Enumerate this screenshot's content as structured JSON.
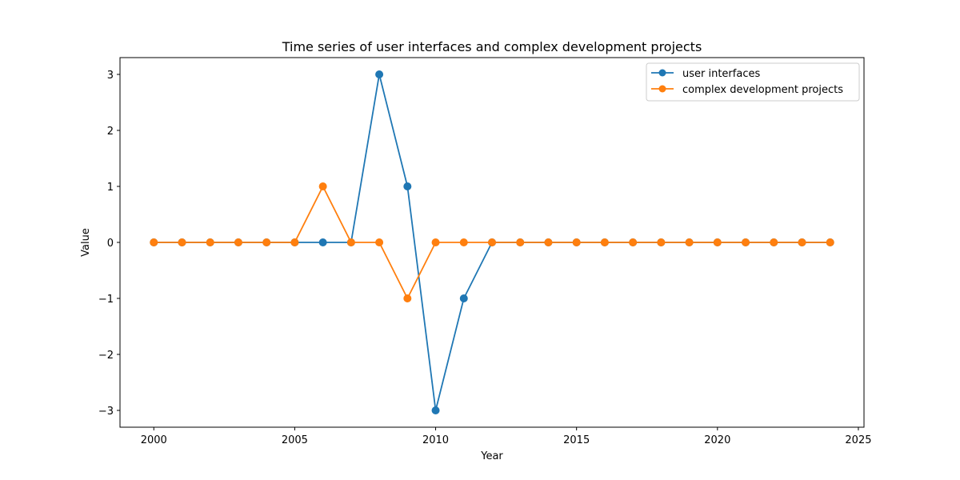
{
  "chart_data": {
    "type": "line",
    "title": "Time series of user interfaces and complex development projects",
    "xlabel": "Year",
    "ylabel": "Value",
    "x": [
      2000,
      2001,
      2002,
      2003,
      2004,
      2005,
      2006,
      2007,
      2008,
      2009,
      2010,
      2011,
      2012,
      2013,
      2014,
      2015,
      2016,
      2017,
      2018,
      2019,
      2020,
      2021,
      2022,
      2023,
      2024
    ],
    "series": [
      {
        "name": "user interfaces",
        "color": "#1f77b4",
        "values": [
          0,
          0,
          0,
          0,
          0,
          0,
          0,
          0,
          3,
          1,
          -3,
          -1,
          0,
          0,
          0,
          0,
          0,
          0,
          0,
          0,
          0,
          0,
          0,
          0,
          0
        ]
      },
      {
        "name": "complex development projects",
        "color": "#ff7f0e",
        "values": [
          0,
          0,
          0,
          0,
          0,
          0,
          1,
          0,
          0,
          -1,
          0,
          0,
          0,
          0,
          0,
          0,
          0,
          0,
          0,
          0,
          0,
          0,
          0,
          0,
          0
        ]
      }
    ],
    "xticks": [
      2000,
      2005,
      2010,
      2015,
      2020,
      2025
    ],
    "xtick_labels": [
      "2000",
      "2005",
      "2010",
      "2015",
      "2020",
      "2025"
    ],
    "yticks": [
      -3,
      -2,
      -1,
      0,
      1,
      2,
      3
    ],
    "ytick_labels": [
      "−3",
      "−2",
      "−1",
      "0",
      "1",
      "2",
      "3"
    ],
    "xlim": [
      1998.8,
      2025.2
    ],
    "ylim": [
      -3.3,
      3.3
    ],
    "grid": false,
    "legend_position": "top-right",
    "marker": "circle"
  }
}
